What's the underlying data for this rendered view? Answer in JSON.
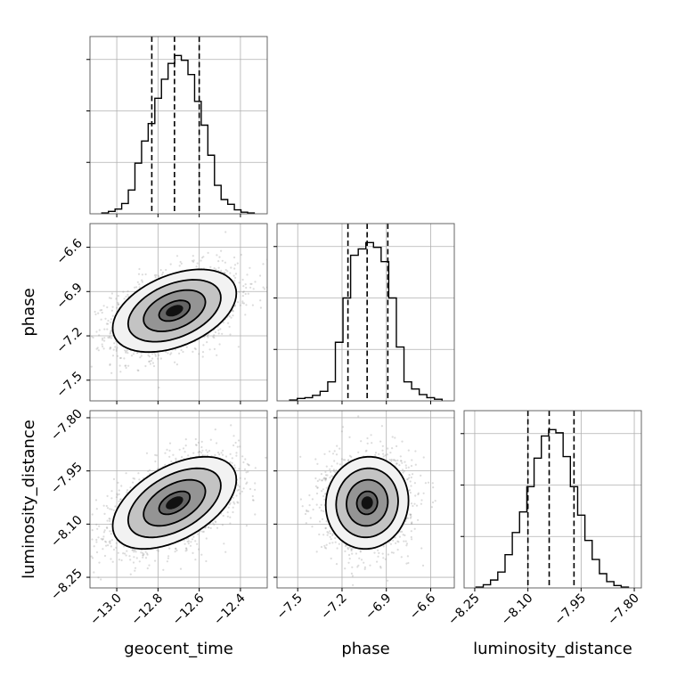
{
  "chart_data": {
    "type": "corner",
    "parameters": [
      "geocent_time",
      "phase",
      "luminosity_distance"
    ],
    "axis_labels": {
      "geocent_time": "geocent_time",
      "phase": "phase",
      "luminosity_distance": "luminosity_distance"
    },
    "ranges": {
      "geocent_time": [
        -13.13,
        -12.27
      ],
      "phase": [
        -7.64,
        -6.44
      ],
      "luminosity_distance": [
        -8.28,
        -7.78
      ]
    },
    "ticks": {
      "geocent_time": [
        -13.0,
        -12.8,
        -12.6,
        -12.4
      ],
      "phase": [
        -7.5,
        -7.2,
        -6.9,
        -6.6
      ],
      "luminosity_distance": [
        -8.25,
        -8.1,
        -7.95,
        -7.8
      ]
    },
    "tick_labels": {
      "geocent_time": [
        "−13.0",
        "−12.8",
        "−12.6",
        "−12.4"
      ],
      "phase": [
        "−7.5",
        "−7.2",
        "−6.9",
        "−6.6"
      ],
      "luminosity_distance": [
        "−8.25",
        "−8.10",
        "−7.95",
        "−7.80"
      ]
    },
    "quantiles": {
      "geocent_time": [
        -12.83,
        -12.72,
        -12.6
      ],
      "phase": [
        -7.16,
        -7.03,
        -6.89
      ],
      "luminosity_distance": [
        -8.1,
        -8.04,
        -7.97
      ]
    },
    "histograms": {
      "geocent_time": [
        0.005,
        0.015,
        0.03,
        0.065,
        0.15,
        0.32,
        0.46,
        0.57,
        0.73,
        0.85,
        0.95,
        1.0,
        0.97,
        0.88,
        0.71,
        0.56,
        0.37,
        0.18,
        0.09,
        0.06,
        0.025,
        0.01,
        0.005
      ],
      "phase": [
        0.005,
        0.015,
        0.02,
        0.035,
        0.06,
        0.12,
        0.37,
        0.65,
        0.92,
        0.96,
        1.0,
        0.97,
        0.88,
        0.65,
        0.34,
        0.12,
        0.075,
        0.04,
        0.02,
        0.01
      ],
      "luminosity_distance": [
        0.005,
        0.02,
        0.05,
        0.1,
        0.21,
        0.35,
        0.48,
        0.64,
        0.82,
        0.96,
        1.0,
        0.98,
        0.83,
        0.64,
        0.46,
        0.3,
        0.18,
        0.09,
        0.04,
        0.015,
        0.005
      ]
    },
    "hist_y_ticks": [
      0.325,
      0.65,
      0.975
    ],
    "pairs": [
      {
        "x": "geocent_time",
        "y": "phase",
        "mean": [
          -12.72,
          -7.03
        ],
        "sigma": [
          0.15,
          0.14
        ],
        "rho": 0.42
      },
      {
        "x": "geocent_time",
        "y": "luminosity_distance",
        "mean": [
          -12.72,
          -8.04
        ],
        "sigma": [
          0.15,
          0.065
        ],
        "rho": 0.5
      },
      {
        "x": "phase",
        "y": "luminosity_distance",
        "mean": [
          -7.03,
          -8.04
        ],
        "sigma": [
          0.14,
          0.065
        ],
        "rho": 0.05
      }
    ],
    "contour_levels_sigma": [
      0.5,
      1.0,
      1.5,
      2.0
    ],
    "colors": {
      "line": "#000000",
      "grid": "#b0b0b0",
      "points": "#9a9a9a",
      "density_dark": "#111111",
      "density_light": "#f2f2f2"
    },
    "grid": true
  }
}
